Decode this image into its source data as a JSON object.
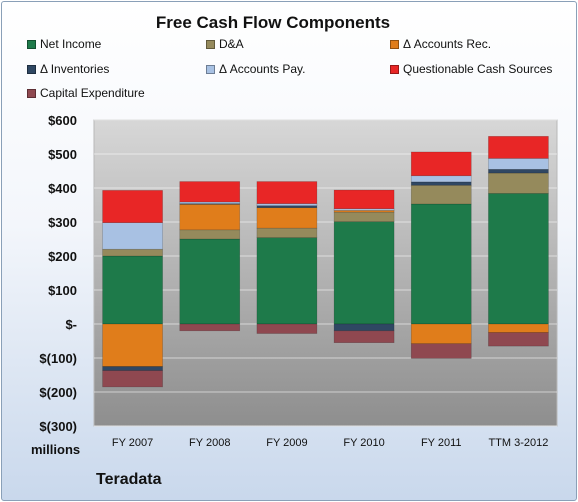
{
  "chart_data": {
    "type": "bar",
    "stacked": true,
    "title": "Free Cash Flow Components",
    "units_label": "millions",
    "footer_label": "Teradata",
    "categories": [
      "FY 2007",
      "FY 2008",
      "FY 2009",
      "FY 2010",
      "FY 2011",
      "TTM 3-2012"
    ],
    "ylim": [
      -300,
      600
    ],
    "yticks": [
      600,
      500,
      400,
      300,
      200,
      100,
      0,
      -100,
      -200,
      -300
    ],
    "ytick_labels": [
      "$600",
      "$500",
      "$400",
      "$300",
      "$200",
      "$100",
      "$-",
      "$(100)",
      "$(200)",
      "$(300)"
    ],
    "grid": true,
    "legend_position": "top",
    "series": [
      {
        "name": "Net Income",
        "color": "#1e7a4a",
        "values": [
          200,
          250,
          254,
          301,
          353,
          384
        ]
      },
      {
        "name": "D&A",
        "color": "#958a5c",
        "values": [
          20,
          27,
          28,
          28,
          55,
          60
        ]
      },
      {
        "name": "Δ Accounts Rec.",
        "color": "#e07d1b",
        "values": [
          -125,
          75,
          60,
          5,
          -58,
          -25
        ]
      },
      {
        "name": "Δ Inventories",
        "color": "#2f4763",
        "values": [
          -12,
          2,
          6,
          -20,
          10,
          11
        ]
      },
      {
        "name": "Δ Accounts Pay.",
        "color": "#a8c1e3",
        "values": [
          78,
          5,
          6,
          5,
          18,
          32
        ]
      },
      {
        "name": "Questionable Cash Sources",
        "color": "#e82626",
        "values": [
          95,
          60,
          65,
          55,
          70,
          65
        ]
      },
      {
        "name": "Capital Expenditure",
        "color": "#8f4850",
        "values": [
          -48,
          -20,
          -28,
          -35,
          -43,
          -40
        ]
      }
    ]
  }
}
